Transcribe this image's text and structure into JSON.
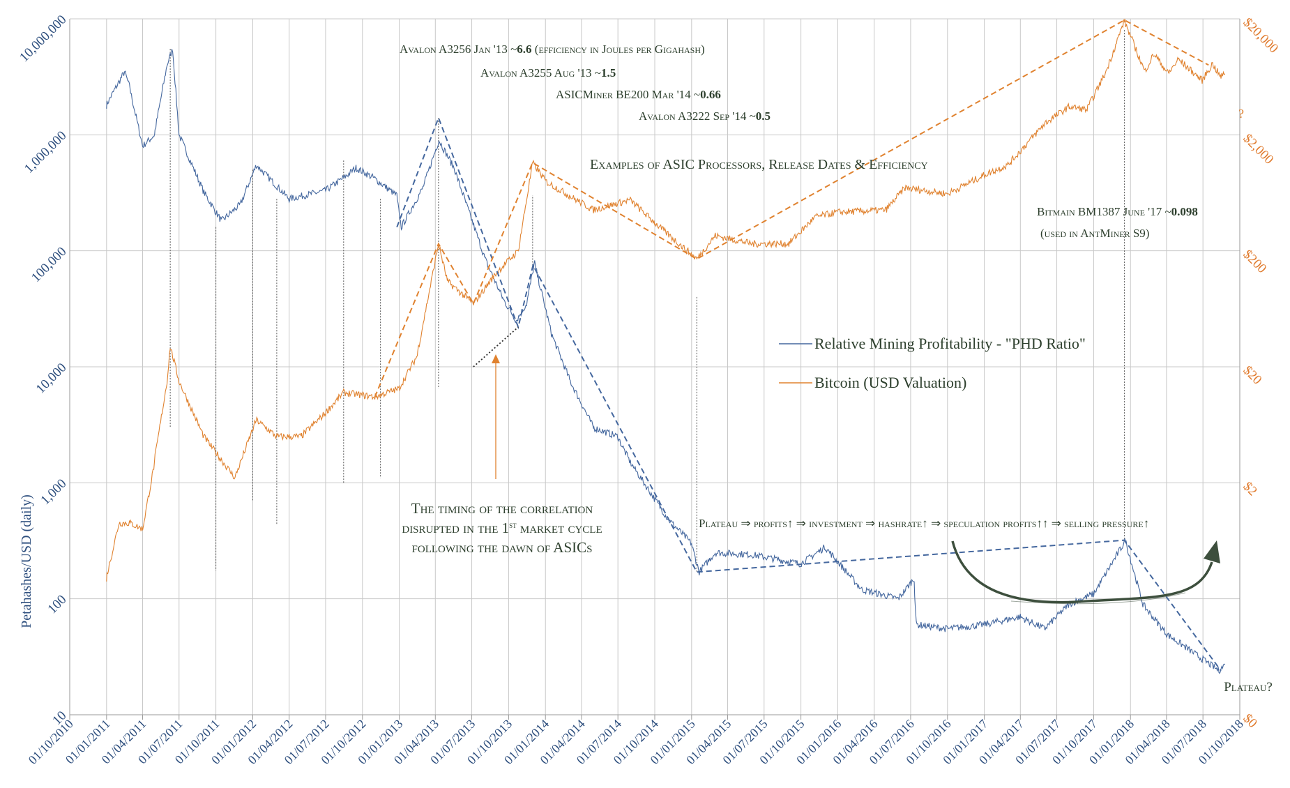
{
  "chart_data": {
    "type": "line",
    "title": "",
    "xlabel": "",
    "ylabel": "Petahashes/USD (daily)",
    "ylabel_right": "",
    "y_scale": "log",
    "ylim": [
      10,
      10000000
    ],
    "ylim_right": [
      0.02,
      20000
    ],
    "x_range": [
      "2010-10-01",
      "2018-10-01"
    ],
    "x_tick_labels": [
      "01/10/2010",
      "01/01/2011",
      "01/04/2011",
      "01/07/2011",
      "01/10/2011",
      "01/01/2012",
      "01/04/2012",
      "01/07/2012",
      "01/10/2012",
      "01/01/2013",
      "01/04/2013",
      "01/07/2013",
      "01/10/2013",
      "01/01/2014",
      "01/04/2014",
      "01/07/2014",
      "01/10/2014",
      "01/01/2015",
      "01/04/2015",
      "01/07/2015",
      "01/10/2015",
      "01/01/2016",
      "01/04/2016",
      "01/07/2016",
      "01/10/2016",
      "01/01/2017",
      "01/04/2017",
      "01/07/2017",
      "01/10/2017",
      "01/01/2018",
      "01/04/2018",
      "01/07/2018",
      "01/10/2018"
    ],
    "y_tick_labels_left": [
      "10",
      "100",
      "1,000",
      "10,000",
      "100,000",
      "1,000,000",
      "10,000,000"
    ],
    "y_tick_labels_right": [
      "$0",
      "$2",
      "$20",
      "$200",
      "$2,000",
      "$20,000"
    ],
    "y_tick_values_right": [
      0.02,
      2,
      20,
      200,
      2000,
      20000
    ],
    "grid": true,
    "legend_position": "center-right",
    "series": [
      {
        "name": "Relative Mining Profitability - \"PHD Ratio\"",
        "color": "#44679e",
        "axis": "left",
        "points": [
          [
            "2011-01-01",
            1800000
          ],
          [
            "2011-02-15",
            3500000
          ],
          [
            "2011-03-01",
            2500000
          ],
          [
            "2011-04-01",
            800000
          ],
          [
            "2011-05-01",
            1000000
          ],
          [
            "2011-06-01",
            4000000
          ],
          [
            "2011-06-15",
            5500000
          ],
          [
            "2011-07-01",
            1000000
          ],
          [
            "2011-09-01",
            320000
          ],
          [
            "2011-10-15",
            180000
          ],
          [
            "2011-12-01",
            250000
          ],
          [
            "2012-01-10",
            550000
          ],
          [
            "2012-04-01",
            280000
          ],
          [
            "2012-07-01",
            330000
          ],
          [
            "2012-08-25",
            450000
          ],
          [
            "2012-09-15",
            520000
          ],
          [
            "2012-11-01",
            420000
          ],
          [
            "2012-12-26",
            300000
          ],
          [
            "2013-01-06",
            160000
          ],
          [
            "2013-03-01",
            350000
          ],
          [
            "2013-04-10",
            900000
          ],
          [
            "2013-05-20",
            500000
          ],
          [
            "2013-08-01",
            90000
          ],
          [
            "2013-09-15",
            40000
          ],
          [
            "2013-10-20",
            25000
          ],
          [
            "2013-11-15",
            35000
          ],
          [
            "2013-12-05",
            80000
          ],
          [
            "2014-01-15",
            20000
          ],
          [
            "2014-03-01",
            8000
          ],
          [
            "2014-05-01",
            3000
          ],
          [
            "2014-07-01",
            2500
          ],
          [
            "2014-08-01",
            1500
          ],
          [
            "2014-11-01",
            500
          ],
          [
            "2015-01-01",
            300
          ],
          [
            "2015-01-20",
            170
          ],
          [
            "2015-03-01",
            250
          ],
          [
            "2015-06-01",
            240
          ],
          [
            "2015-10-01",
            200
          ],
          [
            "2015-12-01",
            280
          ],
          [
            "2016-03-01",
            120
          ],
          [
            "2016-06-01",
            100
          ],
          [
            "2016-07-10",
            150
          ],
          [
            "2016-07-15",
            60
          ],
          [
            "2016-10-01",
            55
          ],
          [
            "2017-01-01",
            60
          ],
          [
            "2017-04-01",
            70
          ],
          [
            "2017-06-01",
            55
          ],
          [
            "2017-08-01",
            90
          ],
          [
            "2017-10-01",
            110
          ],
          [
            "2017-12-20",
            320
          ],
          [
            "2018-02-01",
            90
          ],
          [
            "2018-04-01",
            50
          ],
          [
            "2018-07-01",
            30
          ],
          [
            "2018-08-10",
            24
          ],
          [
            "2018-08-25",
            27
          ]
        ]
      },
      {
        "name": "Bitcoin (USD Valuation)",
        "color": "#e0822f",
        "axis": "right",
        "points": [
          [
            "2011-01-01",
            0.3
          ],
          [
            "2011-02-01",
            0.9
          ],
          [
            "2011-03-01",
            0.9
          ],
          [
            "2011-04-01",
            0.8
          ],
          [
            "2011-05-01",
            3
          ],
          [
            "2011-06-01",
            15
          ],
          [
            "2011-06-09",
            30
          ],
          [
            "2011-07-01",
            15
          ],
          [
            "2011-09-01",
            5
          ],
          [
            "2011-11-18",
            2.2
          ],
          [
            "2012-01-10",
            7
          ],
          [
            "2012-03-01",
            5
          ],
          [
            "2012-05-01",
            5
          ],
          [
            "2012-07-01",
            8
          ],
          [
            "2012-08-15",
            12
          ],
          [
            "2012-11-01",
            11
          ],
          [
            "2013-01-01",
            13
          ],
          [
            "2013-02-15",
            25
          ],
          [
            "2013-04-09",
            230
          ],
          [
            "2013-05-01",
            110
          ],
          [
            "2013-07-05",
            70
          ],
          [
            "2013-09-01",
            130
          ],
          [
            "2013-10-25",
            200
          ],
          [
            "2013-11-30",
            1150
          ],
          [
            "2014-01-01",
            800
          ],
          [
            "2014-03-01",
            600
          ],
          [
            "2014-05-01",
            450
          ],
          [
            "2014-08-01",
            550
          ],
          [
            "2014-10-01",
            350
          ],
          [
            "2015-01-14",
            170
          ],
          [
            "2015-03-01",
            270
          ],
          [
            "2015-06-01",
            230
          ],
          [
            "2015-09-01",
            230
          ],
          [
            "2015-11-05",
            390
          ],
          [
            "2016-01-01",
            430
          ],
          [
            "2016-05-01",
            450
          ],
          [
            "2016-06-17",
            700
          ],
          [
            "2016-10-01",
            620
          ],
          [
            "2017-01-01",
            900
          ],
          [
            "2017-03-01",
            1100
          ],
          [
            "2017-06-01",
            2500
          ],
          [
            "2017-08-01",
            3500
          ],
          [
            "2017-09-15",
            3300
          ],
          [
            "2017-11-01",
            7000
          ],
          [
            "2017-12-17",
            19500
          ],
          [
            "2018-02-06",
            7000
          ],
          [
            "2018-03-01",
            10000
          ],
          [
            "2018-04-06",
            6700
          ],
          [
            "2018-05-01",
            9000
          ],
          [
            "2018-06-29",
            5900
          ],
          [
            "2018-07-25",
            8200
          ],
          [
            "2018-08-14",
            6300
          ],
          [
            "2018-08-25",
            6700
          ]
        ]
      }
    ],
    "trend_lines": [
      {
        "color": "#44679e",
        "axis": "left",
        "style": "dashed",
        "points": [
          [
            "2012-12-26",
            160000
          ],
          [
            "2013-04-09",
            1400000
          ],
          [
            "2013-10-25",
            22000
          ],
          [
            "2013-12-01",
            75000
          ],
          [
            "2015-01-14",
            170
          ],
          [
            "2017-12-17",
            320
          ],
          [
            "2018-08-15",
            24
          ]
        ]
      },
      {
        "color": "#e0822f",
        "axis": "right",
        "style": "dashed",
        "points": [
          [
            "2012-11-01",
            11
          ],
          [
            "2013-04-09",
            230
          ],
          [
            "2013-07-05",
            70
          ],
          [
            "2013-11-30",
            1150
          ],
          [
            "2015-01-14",
            170
          ],
          [
            "2017-12-17",
            19500
          ],
          [
            "2018-07-15",
            8000
          ]
        ]
      },
      {
        "color": "#333333",
        "axis": "left",
        "style": "dotted",
        "points": [
          [
            "2013-07-05",
            10000
          ],
          [
            "2013-10-25",
            22000
          ]
        ]
      }
    ],
    "connectors": [
      {
        "date": "2011-06-09",
        "from_y": 5500000,
        "to_y": 3000
      },
      {
        "date": "2011-10-01",
        "from_y": 160000,
        "to_y": 175
      },
      {
        "date": "2012-01-01",
        "from_y": 500000,
        "to_y": 700
      },
      {
        "date": "2012-03-01",
        "from_y": 280000,
        "to_y": 430
      },
      {
        "date": "2012-08-15",
        "from_y": 600000,
        "to_y": 1000
      },
      {
        "date": "2012-11-15",
        "from_y": 280000,
        "to_y": 1100
      },
      {
        "date": "2013-04-09",
        "from_y": 1400000,
        "to_y": 6500
      },
      {
        "date": "2013-11-30",
        "from_y": 75000,
        "to_y": 300000
      },
      {
        "date": "2015-01-14",
        "from_y": 40000,
        "to_y": 170
      },
      {
        "date": "2017-12-17",
        "from_y": 8000000,
        "to_y": 320
      }
    ],
    "annotations": {
      "asic_1": {
        "name": "Avalon A3256 Jan '13 ~",
        "value": "6.6",
        "tail": " (efficiency in Joules per Gigahash)"
      },
      "asic_2": {
        "name": "Avalon A3255 Aug '13 ~",
        "value": "1.5"
      },
      "asic_3": {
        "name": "ASICMiner BE200 Mar '14 ~",
        "value": "0.66"
      },
      "asic_4": {
        "name": "Avalon A3222 Sep '14 ~",
        "value": "0.5"
      },
      "examples_title": "Examples of ASIC Processors, Release Dates & Efficiency",
      "bitmain": {
        "name": "Bitmain BM1387 June '17 ~",
        "value": "0.098"
      },
      "bitmain_note": "(used in AntMiner S9)",
      "timing_line1": "The timing of the correlation",
      "timing_line2_a": "disrupted in the 1",
      "timing_line2_sup": "st",
      "timing_line2_b": " market cycle",
      "timing_line3": "following the dawn of ASICs",
      "cycle_text": "Plateau ⇒ profits↑ ⇒  investment ⇒ hashrate↑ ⇒ speculation profits↑↑ ⇒ selling pressure↑",
      "plateau_q": "Plateau?",
      "right_q": "?"
    },
    "colors": {
      "blue": "#44679e",
      "orange": "#e0822f",
      "text_dark": "#2d3f2d",
      "arrow_green": "#3d4f3d"
    }
  }
}
